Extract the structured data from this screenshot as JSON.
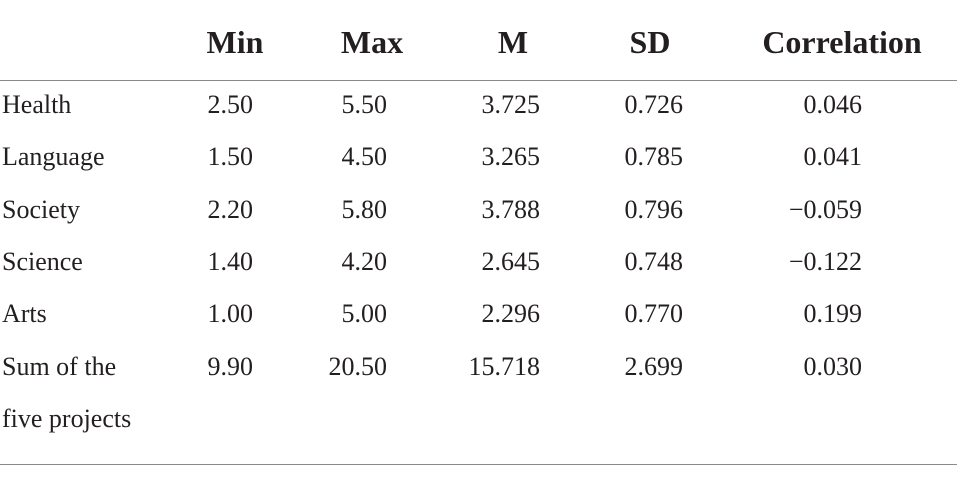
{
  "table": {
    "columns": [
      "Min",
      "Max",
      "M",
      "SD",
      "Correlation"
    ],
    "rows": [
      {
        "label": "Health",
        "values": [
          "2.50",
          "5.50",
          "3.725",
          "0.726",
          "0.046"
        ]
      },
      {
        "label": "Language",
        "values": [
          "1.50",
          "4.50",
          "3.265",
          "0.785",
          "0.041"
        ]
      },
      {
        "label": "Society",
        "values": [
          "2.20",
          "5.80",
          "3.788",
          "0.796",
          "−0.059"
        ]
      },
      {
        "label": "Science",
        "values": [
          "1.40",
          "4.20",
          "2.645",
          "0.748",
          "−0.122"
        ]
      },
      {
        "label": "Arts",
        "values": [
          "1.00",
          "5.00",
          "2.296",
          "0.770",
          "0.199"
        ]
      },
      {
        "label": "Sum of the five projects",
        "values": [
          "9.90",
          "20.50",
          "15.718",
          "2.699",
          "0.030"
        ]
      }
    ]
  }
}
